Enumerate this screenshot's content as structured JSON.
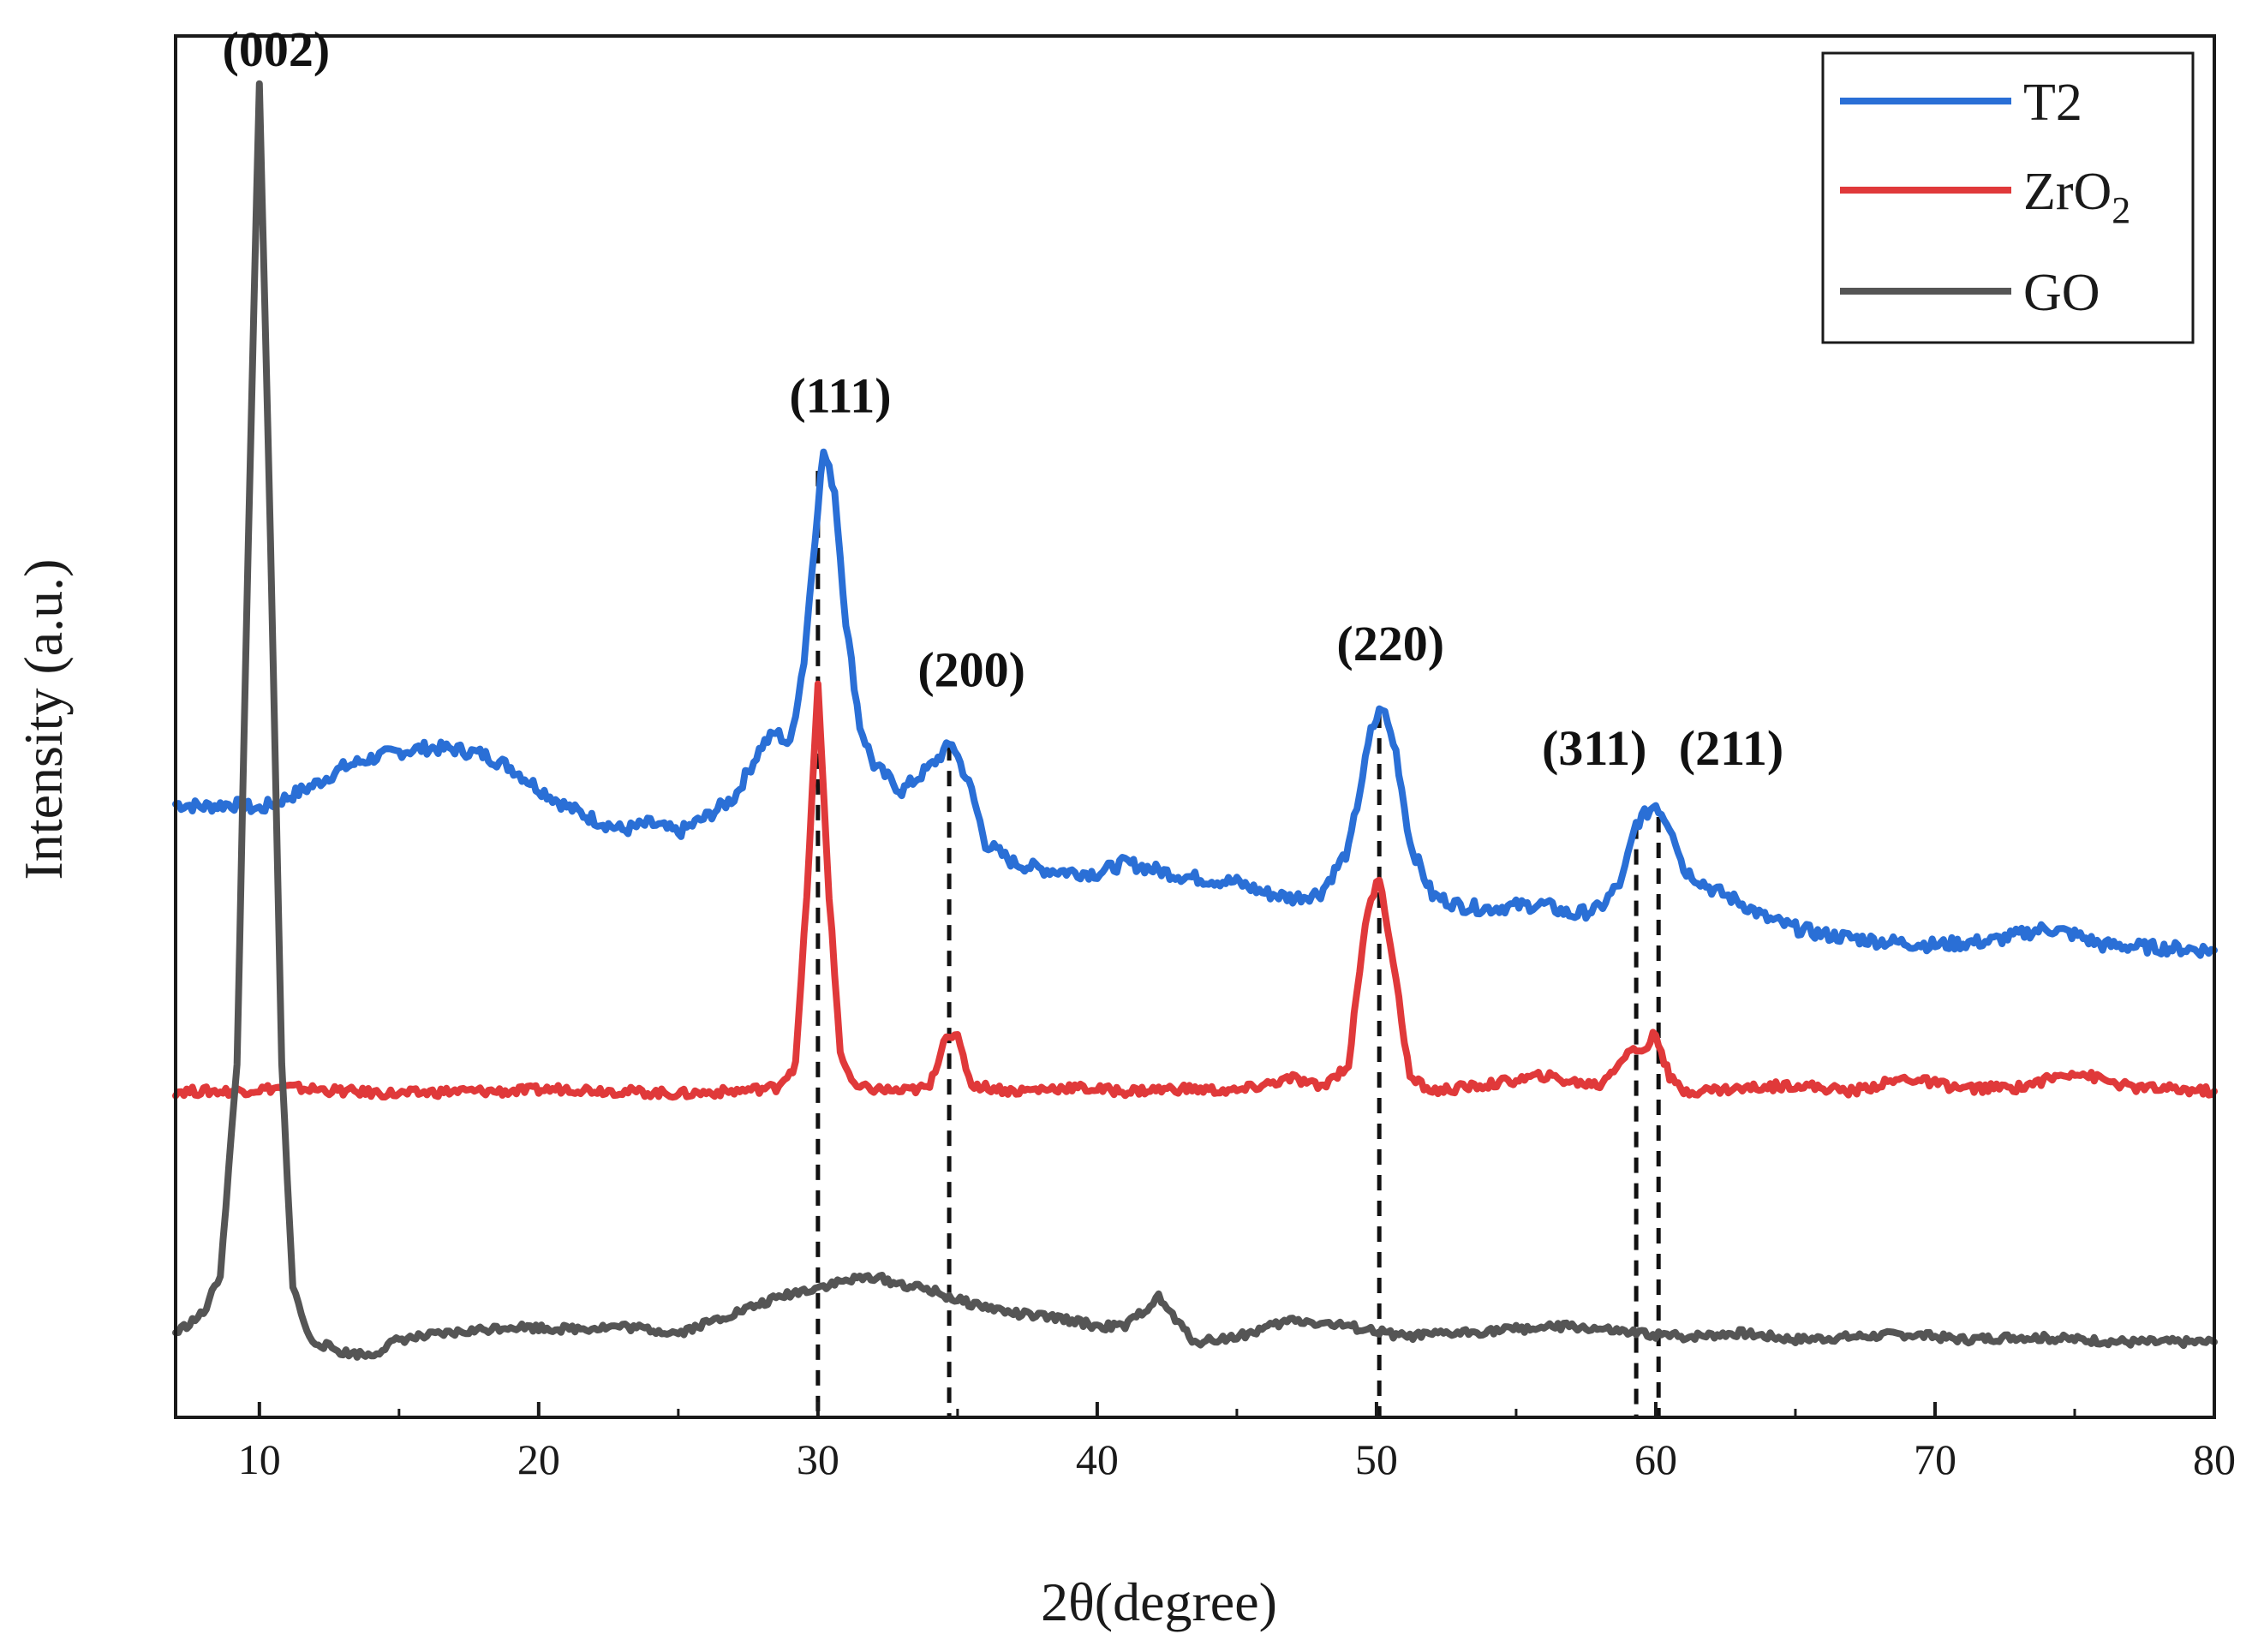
{
  "chart_data": {
    "type": "line",
    "title": "",
    "xlabel": "2θ(degree)",
    "ylabel": "Intensity (a.u.)",
    "xlim": [
      7,
      80
    ],
    "ylim": [
      0,
      10
    ],
    "x_ticks": [
      10,
      20,
      30,
      40,
      50,
      60,
      70,
      80
    ],
    "y_ticks": [],
    "grid": false,
    "legend_position": "top-right",
    "series": [
      {
        "name": "T2",
        "color": "#2a6fd6",
        "points": [
          [
            7,
            4.5
          ],
          [
            8,
            4.48
          ],
          [
            9,
            4.5
          ],
          [
            10,
            4.46
          ],
          [
            11,
            4.55
          ],
          [
            12,
            4.65
          ],
          [
            13,
            4.78
          ],
          [
            14,
            4.85
          ],
          [
            15,
            4.9
          ],
          [
            16,
            4.93
          ],
          [
            17,
            4.92
          ],
          [
            18,
            4.88
          ],
          [
            19,
            4.78
          ],
          [
            20,
            4.62
          ],
          [
            21,
            4.48
          ],
          [
            22,
            4.38
          ],
          [
            23,
            4.3
          ],
          [
            24,
            4.35
          ],
          [
            25,
            4.28
          ],
          [
            26,
            4.4
          ],
          [
            27,
            4.55
          ],
          [
            28,
            4.95
          ],
          [
            28.5,
            5.05
          ],
          [
            29,
            4.95
          ],
          [
            29.5,
            5.6
          ],
          [
            30,
            6.8
          ],
          [
            30.2,
            7.2
          ],
          [
            30.6,
            6.9
          ],
          [
            31,
            5.9
          ],
          [
            31.5,
            5.1
          ],
          [
            32,
            4.8
          ],
          [
            33,
            4.6
          ],
          [
            34,
            4.78
          ],
          [
            34.8,
            4.97
          ],
          [
            35.5,
            4.6
          ],
          [
            36,
            4.2
          ],
          [
            37,
            4.05
          ],
          [
            38,
            4.0
          ],
          [
            39,
            3.98
          ],
          [
            40,
            3.97
          ],
          [
            41,
            4.05
          ],
          [
            42,
            4.0
          ],
          [
            43,
            3.95
          ],
          [
            44,
            3.92
          ],
          [
            45,
            3.9
          ],
          [
            46,
            3.82
          ],
          [
            47,
            3.78
          ],
          [
            48,
            3.82
          ],
          [
            49,
            4.15
          ],
          [
            49.8,
            5.05
          ],
          [
            50.2,
            5.25
          ],
          [
            50.7,
            4.9
          ],
          [
            51.2,
            4.2
          ],
          [
            52,
            3.8
          ],
          [
            53,
            3.72
          ],
          [
            54,
            3.7
          ],
          [
            55,
            3.72
          ],
          [
            56,
            3.73
          ],
          [
            57,
            3.65
          ],
          [
            58,
            3.7
          ],
          [
            58.8,
            3.92
          ],
          [
            59.3,
            4.35
          ],
          [
            60,
            4.5
          ],
          [
            60.6,
            4.3
          ],
          [
            61,
            4.0
          ],
          [
            62,
            3.85
          ],
          [
            63,
            3.75
          ],
          [
            64,
            3.62
          ],
          [
            65,
            3.55
          ],
          [
            66,
            3.5
          ],
          [
            68,
            3.45
          ],
          [
            70,
            3.42
          ],
          [
            72,
            3.45
          ],
          [
            73,
            3.5
          ],
          [
            74,
            3.55
          ],
          [
            75,
            3.5
          ],
          [
            76,
            3.42
          ],
          [
            78,
            3.4
          ],
          [
            80,
            3.38
          ]
        ]
      },
      {
        "name": "ZrO2",
        "color": "#e0393a",
        "points": [
          [
            7,
            2.3
          ],
          [
            9,
            2.3
          ],
          [
            11,
            2.33
          ],
          [
            13,
            2.3
          ],
          [
            15,
            2.28
          ],
          [
            17,
            2.3
          ],
          [
            19,
            2.3
          ],
          [
            21,
            2.32
          ],
          [
            23,
            2.3
          ],
          [
            25,
            2.28
          ],
          [
            27,
            2.3
          ],
          [
            28.5,
            2.33
          ],
          [
            29.2,
            2.5
          ],
          [
            29.6,
            3.8
          ],
          [
            30,
            5.4
          ],
          [
            30.4,
            3.8
          ],
          [
            30.8,
            2.6
          ],
          [
            31.3,
            2.33
          ],
          [
            33,
            2.3
          ],
          [
            34,
            2.33
          ],
          [
            34.6,
            2.75
          ],
          [
            35,
            2.7
          ],
          [
            35.5,
            2.35
          ],
          [
            37,
            2.3
          ],
          [
            39,
            2.33
          ],
          [
            41,
            2.3
          ],
          [
            43,
            2.32
          ],
          [
            45,
            2.3
          ],
          [
            47,
            2.4
          ],
          [
            48,
            2.33
          ],
          [
            49,
            2.5
          ],
          [
            49.6,
            3.6
          ],
          [
            50.1,
            3.95
          ],
          [
            50.6,
            3.3
          ],
          [
            51.2,
            2.4
          ],
          [
            52,
            2.3
          ],
          [
            54,
            2.35
          ],
          [
            56,
            2.42
          ],
          [
            57,
            2.37
          ],
          [
            58,
            2.35
          ],
          [
            59,
            2.6
          ],
          [
            59.6,
            2.62
          ],
          [
            60,
            2.75
          ],
          [
            60.5,
            2.4
          ],
          [
            61,
            2.3
          ],
          [
            63,
            2.32
          ],
          [
            65,
            2.35
          ],
          [
            67,
            2.3
          ],
          [
            69,
            2.4
          ],
          [
            71,
            2.32
          ],
          [
            73,
            2.33
          ],
          [
            75,
            2.45
          ],
          [
            77,
            2.33
          ],
          [
            80,
            2.3
          ]
        ]
      },
      {
        "name": "GO",
        "color": "#555555",
        "points": [
          [
            7,
            0.45
          ],
          [
            8,
            0.6
          ],
          [
            8.6,
            0.9
          ],
          [
            9.2,
            2.5
          ],
          [
            9.6,
            6.5
          ],
          [
            10,
            10.0
          ],
          [
            10.4,
            6.5
          ],
          [
            10.8,
            2.5
          ],
          [
            11.2,
            0.8
          ],
          [
            11.8,
            0.4
          ],
          [
            13,
            0.3
          ],
          [
            14,
            0.28
          ],
          [
            15,
            0.4
          ],
          [
            17,
            0.45
          ],
          [
            19,
            0.5
          ],
          [
            21,
            0.48
          ],
          [
            23,
            0.5
          ],
          [
            25,
            0.45
          ],
          [
            27,
            0.6
          ],
          [
            29,
            0.75
          ],
          [
            31,
            0.85
          ],
          [
            32,
            0.88
          ],
          [
            33,
            0.82
          ],
          [
            34,
            0.78
          ],
          [
            35,
            0.7
          ],
          [
            37,
            0.6
          ],
          [
            39,
            0.55
          ],
          [
            40,
            0.5
          ],
          [
            41,
            0.5
          ],
          [
            42.2,
            0.72
          ],
          [
            43,
            0.5
          ],
          [
            43.5,
            0.38
          ],
          [
            45,
            0.42
          ],
          [
            47,
            0.55
          ],
          [
            49,
            0.5
          ],
          [
            51,
            0.42
          ],
          [
            53,
            0.45
          ],
          [
            55,
            0.48
          ],
          [
            57,
            0.5
          ],
          [
            59,
            0.45
          ],
          [
            61,
            0.42
          ],
          [
            63,
            0.45
          ],
          [
            65,
            0.4
          ],
          [
            67,
            0.42
          ],
          [
            69,
            0.44
          ],
          [
            71,
            0.4
          ],
          [
            73,
            0.42
          ],
          [
            75,
            0.4
          ],
          [
            77,
            0.38
          ],
          [
            80,
            0.38
          ]
        ]
      }
    ],
    "reference_lines": [
      30.0,
      34.7,
      50.1,
      59.3,
      60.1
    ],
    "annotations": [
      {
        "text": "(002)",
        "x": 10.6,
        "y": 10.15
      },
      {
        "text": "(111)",
        "x": 30.8,
        "y": 7.5
      },
      {
        "text": "(200)",
        "x": 35.5,
        "y": 5.4
      },
      {
        "text": "(220)",
        "x": 50.5,
        "y": 5.6
      },
      {
        "text": "(311)",
        "x": 57.8,
        "y": 4.8
      },
      {
        "text": "(211)",
        "x": 62.7,
        "y": 4.8
      }
    ],
    "legend": [
      {
        "label": "T2",
        "color": "#2a6fd6"
      },
      {
        "label": "ZrO2",
        "label_main": "ZrO",
        "label_sub": "2",
        "color": "#e0393a"
      },
      {
        "label": "GO",
        "color": "#555555"
      }
    ]
  }
}
